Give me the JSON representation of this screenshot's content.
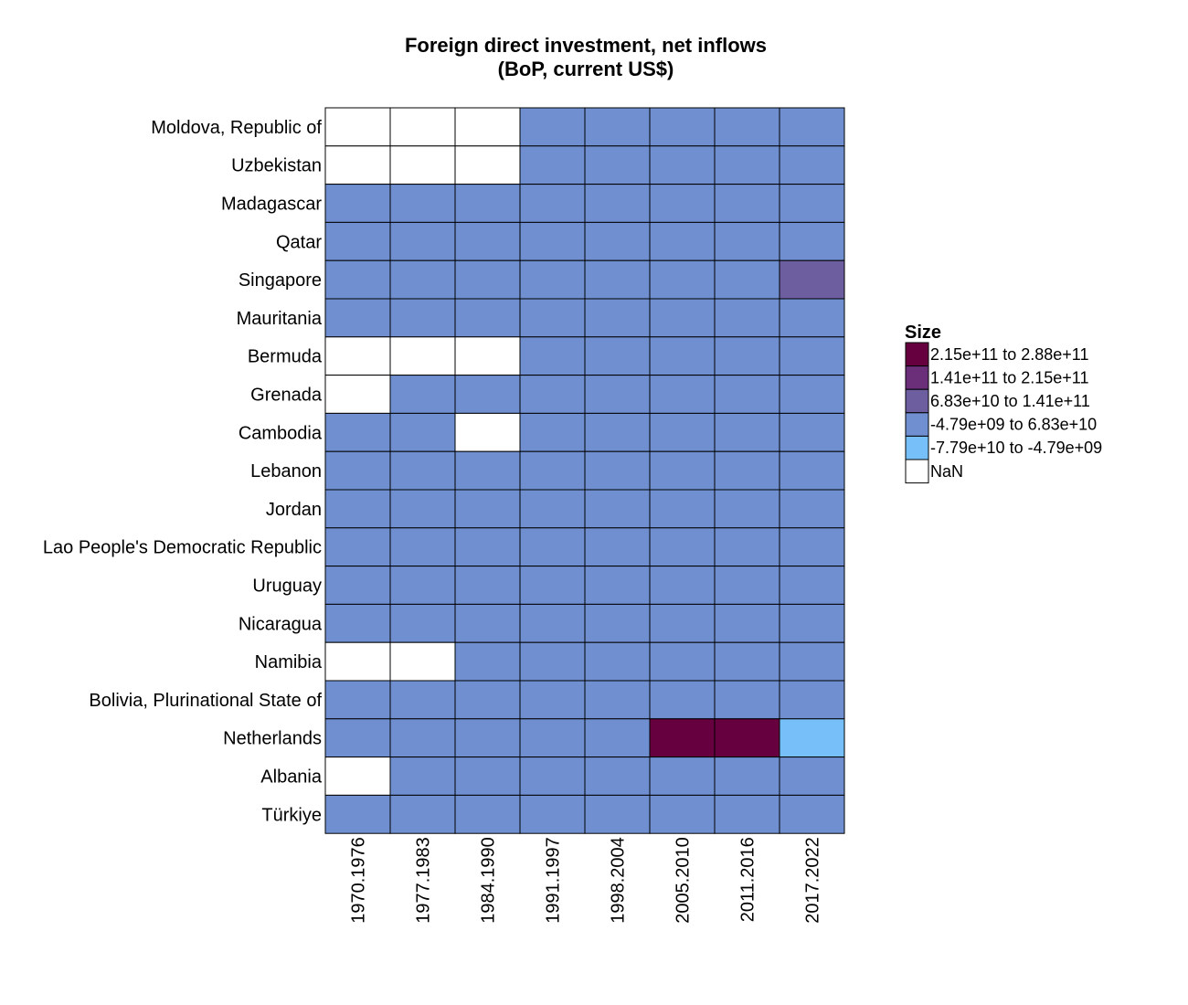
{
  "chart_data": {
    "type": "heatmap",
    "title": "Foreign direct investment, net inflows",
    "subtitle": "(BoP, current US$)",
    "columns": [
      "1970.1976",
      "1977.1983",
      "1984.1990",
      "1991.1997",
      "1998.2004",
      "2005.2010",
      "2011.2016",
      "2017.2022"
    ],
    "rows": [
      "Moldova, Republic of",
      "Uzbekistan",
      "Madagascar",
      "Qatar",
      "Singapore",
      "Mauritania",
      "Bermuda",
      "Grenada",
      "Cambodia",
      "Lebanon",
      "Jordan",
      "Lao People's Democratic Republic",
      "Uruguay",
      "Nicaragua",
      "Namibia",
      "Bolivia, Plurinational State of",
      "Netherlands",
      "Albania",
      "Türkiye"
    ],
    "cells": [
      [
        "NaN",
        "NaN",
        "NaN",
        "-4.79e+09 to 6.83e+10",
        "-4.79e+09 to 6.83e+10",
        "-4.79e+09 to 6.83e+10",
        "-4.79e+09 to 6.83e+10",
        "-4.79e+09 to 6.83e+10"
      ],
      [
        "NaN",
        "NaN",
        "NaN",
        "-4.79e+09 to 6.83e+10",
        "-4.79e+09 to 6.83e+10",
        "-4.79e+09 to 6.83e+10",
        "-4.79e+09 to 6.83e+10",
        "-4.79e+09 to 6.83e+10"
      ],
      [
        "-4.79e+09 to 6.83e+10",
        "-4.79e+09 to 6.83e+10",
        "-4.79e+09 to 6.83e+10",
        "-4.79e+09 to 6.83e+10",
        "-4.79e+09 to 6.83e+10",
        "-4.79e+09 to 6.83e+10",
        "-4.79e+09 to 6.83e+10",
        "-4.79e+09 to 6.83e+10"
      ],
      [
        "-4.79e+09 to 6.83e+10",
        "-4.79e+09 to 6.83e+10",
        "-4.79e+09 to 6.83e+10",
        "-4.79e+09 to 6.83e+10",
        "-4.79e+09 to 6.83e+10",
        "-4.79e+09 to 6.83e+10",
        "-4.79e+09 to 6.83e+10",
        "-4.79e+09 to 6.83e+10"
      ],
      [
        "-4.79e+09 to 6.83e+10",
        "-4.79e+09 to 6.83e+10",
        "-4.79e+09 to 6.83e+10",
        "-4.79e+09 to 6.83e+10",
        "-4.79e+09 to 6.83e+10",
        "-4.79e+09 to 6.83e+10",
        "-4.79e+09 to 6.83e+10",
        "6.83e+10 to 1.41e+11"
      ],
      [
        "-4.79e+09 to 6.83e+10",
        "-4.79e+09 to 6.83e+10",
        "-4.79e+09 to 6.83e+10",
        "-4.79e+09 to 6.83e+10",
        "-4.79e+09 to 6.83e+10",
        "-4.79e+09 to 6.83e+10",
        "-4.79e+09 to 6.83e+10",
        "-4.79e+09 to 6.83e+10"
      ],
      [
        "NaN",
        "NaN",
        "NaN",
        "-4.79e+09 to 6.83e+10",
        "-4.79e+09 to 6.83e+10",
        "-4.79e+09 to 6.83e+10",
        "-4.79e+09 to 6.83e+10",
        "-4.79e+09 to 6.83e+10"
      ],
      [
        "NaN",
        "-4.79e+09 to 6.83e+10",
        "-4.79e+09 to 6.83e+10",
        "-4.79e+09 to 6.83e+10",
        "-4.79e+09 to 6.83e+10",
        "-4.79e+09 to 6.83e+10",
        "-4.79e+09 to 6.83e+10",
        "-4.79e+09 to 6.83e+10"
      ],
      [
        "-4.79e+09 to 6.83e+10",
        "-4.79e+09 to 6.83e+10",
        "NaN",
        "-4.79e+09 to 6.83e+10",
        "-4.79e+09 to 6.83e+10",
        "-4.79e+09 to 6.83e+10",
        "-4.79e+09 to 6.83e+10",
        "-4.79e+09 to 6.83e+10"
      ],
      [
        "-4.79e+09 to 6.83e+10",
        "-4.79e+09 to 6.83e+10",
        "-4.79e+09 to 6.83e+10",
        "-4.79e+09 to 6.83e+10",
        "-4.79e+09 to 6.83e+10",
        "-4.79e+09 to 6.83e+10",
        "-4.79e+09 to 6.83e+10",
        "-4.79e+09 to 6.83e+10"
      ],
      [
        "-4.79e+09 to 6.83e+10",
        "-4.79e+09 to 6.83e+10",
        "-4.79e+09 to 6.83e+10",
        "-4.79e+09 to 6.83e+10",
        "-4.79e+09 to 6.83e+10",
        "-4.79e+09 to 6.83e+10",
        "-4.79e+09 to 6.83e+10",
        "-4.79e+09 to 6.83e+10"
      ],
      [
        "-4.79e+09 to 6.83e+10",
        "-4.79e+09 to 6.83e+10",
        "-4.79e+09 to 6.83e+10",
        "-4.79e+09 to 6.83e+10",
        "-4.79e+09 to 6.83e+10",
        "-4.79e+09 to 6.83e+10",
        "-4.79e+09 to 6.83e+10",
        "-4.79e+09 to 6.83e+10"
      ],
      [
        "-4.79e+09 to 6.83e+10",
        "-4.79e+09 to 6.83e+10",
        "-4.79e+09 to 6.83e+10",
        "-4.79e+09 to 6.83e+10",
        "-4.79e+09 to 6.83e+10",
        "-4.79e+09 to 6.83e+10",
        "-4.79e+09 to 6.83e+10",
        "-4.79e+09 to 6.83e+10"
      ],
      [
        "-4.79e+09 to 6.83e+10",
        "-4.79e+09 to 6.83e+10",
        "-4.79e+09 to 6.83e+10",
        "-4.79e+09 to 6.83e+10",
        "-4.79e+09 to 6.83e+10",
        "-4.79e+09 to 6.83e+10",
        "-4.79e+09 to 6.83e+10",
        "-4.79e+09 to 6.83e+10"
      ],
      [
        "NaN",
        "NaN",
        "-4.79e+09 to 6.83e+10",
        "-4.79e+09 to 6.83e+10",
        "-4.79e+09 to 6.83e+10",
        "-4.79e+09 to 6.83e+10",
        "-4.79e+09 to 6.83e+10",
        "-4.79e+09 to 6.83e+10"
      ],
      [
        "-4.79e+09 to 6.83e+10",
        "-4.79e+09 to 6.83e+10",
        "-4.79e+09 to 6.83e+10",
        "-4.79e+09 to 6.83e+10",
        "-4.79e+09 to 6.83e+10",
        "-4.79e+09 to 6.83e+10",
        "-4.79e+09 to 6.83e+10",
        "-4.79e+09 to 6.83e+10"
      ],
      [
        "-4.79e+09 to 6.83e+10",
        "-4.79e+09 to 6.83e+10",
        "-4.79e+09 to 6.83e+10",
        "-4.79e+09 to 6.83e+10",
        "-4.79e+09 to 6.83e+10",
        "2.15e+11 to 2.88e+11",
        "2.15e+11 to 2.88e+11",
        "-7.79e+10 to -4.79e+09"
      ],
      [
        "NaN",
        "-4.79e+09 to 6.83e+10",
        "-4.79e+09 to 6.83e+10",
        "-4.79e+09 to 6.83e+10",
        "-4.79e+09 to 6.83e+10",
        "-4.79e+09 to 6.83e+10",
        "-4.79e+09 to 6.83e+10",
        "-4.79e+09 to 6.83e+10"
      ],
      [
        "-4.79e+09 to 6.83e+10",
        "-4.79e+09 to 6.83e+10",
        "-4.79e+09 to 6.83e+10",
        "-4.79e+09 to 6.83e+10",
        "-4.79e+09 to 6.83e+10",
        "-4.79e+09 to 6.83e+10",
        "-4.79e+09 to 6.83e+10",
        "-4.79e+09 to 6.83e+10"
      ]
    ],
    "legend": {
      "title": "Size",
      "placement": "right",
      "entries": [
        {
          "label": "2.15e+11 to 2.88e+11",
          "color": "#67003f"
        },
        {
          "label": "1.41e+11 to 2.15e+11",
          "color": "#6a2f78"
        },
        {
          "label": "6.83e+10 to 1.41e+11",
          "color": "#6d5e9f"
        },
        {
          "label": "-4.79e+09 to 6.83e+10",
          "color": "#6f8fd0"
        },
        {
          "label": "-7.79e+10 to -4.79e+09",
          "color": "#76bff9"
        },
        {
          "label": "NaN",
          "color": "#ffffff"
        }
      ]
    },
    "grid": true
  }
}
